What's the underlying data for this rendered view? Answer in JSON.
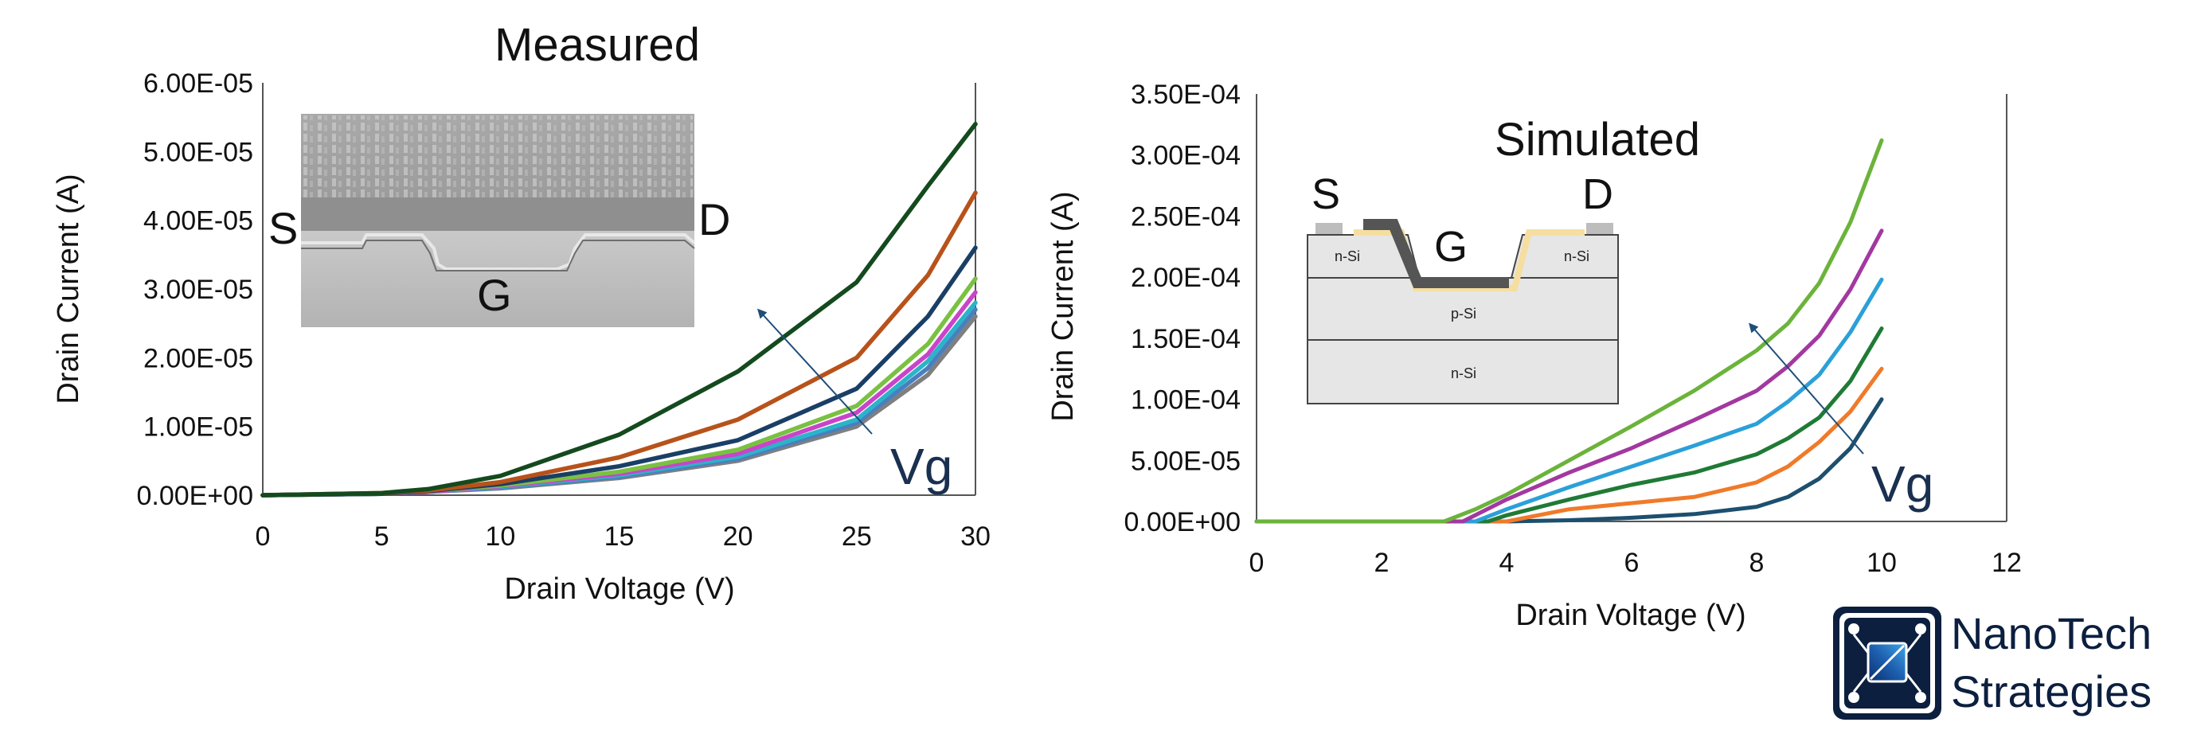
{
  "charts": [
    {
      "id": "measured",
      "title": "Measured",
      "xlabel": "Drain Voltage (V)",
      "ylabel": "Drain Current (A)",
      "xlim": [
        0,
        30
      ],
      "ylim": [
        0,
        6e-05
      ],
      "x_ticks": [
        "0",
        "5",
        "10",
        "15",
        "20",
        "25",
        "30"
      ],
      "y_ticks": [
        "0.00E+00",
        "1.00E-05",
        "2.00E-05",
        "3.00E-05",
        "4.00E-05",
        "5.00E-05",
        "6.00E-05"
      ],
      "arrow_label": "Vg",
      "inset": {
        "type": "cross-section-micrograph",
        "labels": {
          "source": "S",
          "drain": "D",
          "gate": "G"
        }
      }
    },
    {
      "id": "simulated",
      "title": "Simulated",
      "xlabel": "Drain Voltage (V)",
      "ylabel": "Drain Current (A)",
      "xlim": [
        0,
        12
      ],
      "ylim": [
        0,
        0.00035
      ],
      "x_ticks": [
        "0",
        "2",
        "4",
        "6",
        "8",
        "10",
        "12"
      ],
      "y_ticks": [
        "0.00E+00",
        "5.00E-05",
        "1.00E-04",
        "1.50E-04",
        "2.00E-04",
        "2.50E-04",
        "3.00E-04",
        "3.50E-04"
      ],
      "arrow_label": "Vg",
      "inset": {
        "type": "device-schematic",
        "labels": {
          "source": "S",
          "drain": "D",
          "gate": "G",
          "left_region": "n-Si",
          "right_region": "n-Si",
          "middle_layer": "p-Si",
          "bottom_layer": "n-Si"
        }
      }
    }
  ],
  "chart_data": [
    {
      "type": "line",
      "title": "Measured",
      "xlabel": "Drain Voltage (V)",
      "ylabel": "Drain Current (A)",
      "xlim": [
        0,
        30
      ],
      "ylim": [
        0,
        6e-05
      ],
      "grid": false,
      "series": [
        {
          "color": "#7f7f7f",
          "x": [
            0,
            5,
            7,
            10,
            15,
            20,
            25,
            28,
            30
          ],
          "y": [
            0,
            2e-07,
            5e-07,
            1e-06,
            2.5e-06,
            5e-06,
            1e-05,
            1.75e-05,
            2.6e-05
          ]
        },
        {
          "color": "#4a7fbf",
          "x": [
            0,
            5,
            7,
            10,
            15,
            20,
            25,
            28,
            30
          ],
          "y": [
            0,
            2e-07,
            5e-07,
            1.1e-06,
            2.7e-06,
            5.3e-06,
            1.05e-05,
            1.85e-05,
            2.7e-05
          ]
        },
        {
          "color": "#2ab4c9",
          "x": [
            0,
            5,
            7,
            10,
            15,
            20,
            25,
            28,
            30
          ],
          "y": [
            0,
            2e-07,
            5e-07,
            1.2e-06,
            2.9e-06,
            5.6e-06,
            1.1e-05,
            1.95e-05,
            2.8e-05
          ]
        },
        {
          "color": "#c944c9",
          "x": [
            0,
            5,
            7,
            10,
            15,
            20,
            25,
            28,
            30
          ],
          "y": [
            0,
            2e-07,
            5e-07,
            1.3e-06,
            3.1e-06,
            6e-06,
            1.2e-05,
            2.05e-05,
            2.95e-05
          ]
        },
        {
          "color": "#7ac142",
          "x": [
            0,
            5,
            7,
            10,
            15,
            20,
            25,
            28,
            30
          ],
          "y": [
            0,
            2e-07,
            6e-07,
            1.4e-06,
            3.4e-06,
            6.6e-06,
            1.3e-05,
            2.2e-05,
            3.15e-05
          ]
        },
        {
          "color": "#1a3f66",
          "x": [
            0,
            5,
            7,
            10,
            15,
            20,
            25,
            28,
            30
          ],
          "y": [
            0,
            2e-07,
            6e-07,
            1.6e-06,
            4.2e-06,
            8e-06,
            1.55e-05,
            2.6e-05,
            3.6e-05
          ]
        },
        {
          "color": "#b8521a",
          "x": [
            0,
            5,
            7,
            10,
            15,
            20,
            25,
            28,
            30
          ],
          "y": [
            0,
            3e-07,
            7e-07,
            1.9e-06,
            5.5e-06,
            1.1e-05,
            2e-05,
            3.2e-05,
            4.4e-05
          ]
        },
        {
          "color": "#134a1e",
          "x": [
            0,
            5,
            7,
            10,
            15,
            20,
            25,
            28,
            30
          ],
          "y": [
            0,
            3e-07,
            9e-07,
            2.8e-06,
            8.8e-06,
            1.8e-05,
            3.1e-05,
            4.5e-05,
            5.4e-05
          ]
        }
      ]
    },
    {
      "type": "line",
      "title": "Simulated",
      "xlabel": "Drain Voltage (V)",
      "ylabel": "Drain Current (A)",
      "xlim": [
        0,
        12
      ],
      "ylim": [
        0,
        0.00035
      ],
      "grid": false,
      "series": [
        {
          "color": "#1d4f6e",
          "x": [
            0,
            4,
            5,
            6,
            7,
            8,
            8.5,
            9,
            9.5,
            10
          ],
          "y": [
            0,
            0,
            1e-06,
            3e-06,
            6e-06,
            1.2e-05,
            2e-05,
            3.5e-05,
            6e-05,
            0.0001
          ]
        },
        {
          "color": "#f07a2a",
          "x": [
            0,
            4,
            4.5,
            5,
            6,
            7,
            8,
            8.5,
            9,
            9.5,
            10
          ],
          "y": [
            0,
            0,
            5e-06,
            1e-05,
            1.5e-05,
            2e-05,
            3.2e-05,
            4.5e-05,
            6.5e-05,
            9e-05,
            0.000125
          ]
        },
        {
          "color": "#1f7a35",
          "x": [
            0,
            3.7,
            4,
            5,
            6,
            7,
            8,
            8.5,
            9,
            9.5,
            10
          ],
          "y": [
            0,
            0,
            5e-06,
            1.8e-05,
            3e-05,
            4e-05,
            5.5e-05,
            6.8e-05,
            8.5e-05,
            0.000115,
            0.000158
          ]
        },
        {
          "color": "#2ba0d8",
          "x": [
            0,
            3.5,
            4,
            5,
            6,
            7,
            8,
            8.5,
            9,
            9.5,
            10
          ],
          "y": [
            0,
            0,
            1e-05,
            2.8e-05,
            4.5e-05,
            6.2e-05,
            8e-05,
            9.8e-05,
            0.00012,
            0.000155,
            0.000198
          ]
        },
        {
          "color": "#a238a0",
          "x": [
            0,
            3.3,
            4,
            5,
            6,
            7,
            8,
            8.5,
            9,
            9.5,
            10
          ],
          "y": [
            0,
            0,
            1.8e-05,
            4e-05,
            6e-05,
            8.3e-05,
            0.000107,
            0.000127,
            0.000152,
            0.00019,
            0.000238
          ]
        },
        {
          "color": "#6bb33a",
          "x": [
            0,
            3,
            3.5,
            4,
            5,
            6,
            7,
            8,
            8.5,
            9,
            9.5,
            10
          ],
          "y": [
            0,
            0,
            1e-05,
            2.2e-05,
            5e-05,
            7.8e-05,
            0.000107,
            0.00014,
            0.000162,
            0.000195,
            0.000245,
            0.000312
          ]
        }
      ]
    }
  ],
  "logo": {
    "line1": "NanoTech",
    "line2": "Strategies"
  }
}
